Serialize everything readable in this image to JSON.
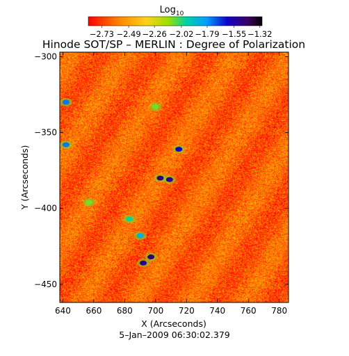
{
  "chart_data": {
    "type": "heatmap",
    "title": "Hinode SOT/SP – MERLIN : Degree of Polarization",
    "xlabel": "X (Arcseconds)",
    "ylabel": "Y (Arcseconds)",
    "footer": "5–Jan–2009 06:30:02.379",
    "xlim": [
      638,
      786
    ],
    "ylim": [
      -462,
      -297
    ],
    "x_ticks": [
      640,
      660,
      680,
      700,
      720,
      740,
      760,
      780
    ],
    "y_ticks": [
      -300,
      -350,
      -400,
      -450
    ],
    "colorbar": {
      "title": "Log",
      "title_sub": "10",
      "range": [
        -2.85,
        -1.3
      ],
      "ticks": [
        -2.73,
        -2.49,
        -2.26,
        -2.02,
        -1.79,
        -1.55,
        -1.32
      ],
      "tick_labels": [
        "−2.73",
        "−2.49",
        "−2.26",
        "−2.02",
        "−1.79",
        "−1.55",
        "−1.32"
      ]
    },
    "background_level": -2.65,
    "features": [
      {
        "x": 703,
        "y": -380,
        "level": -1.45
      },
      {
        "x": 709,
        "y": -381,
        "level": -1.5
      },
      {
        "x": 697,
        "y": -432,
        "level": -1.45
      },
      {
        "x": 692,
        "y": -436,
        "level": -1.5
      },
      {
        "x": 715,
        "y": -361,
        "level": -1.6
      },
      {
        "x": 642,
        "y": -330,
        "level": -1.75
      },
      {
        "x": 642,
        "y": -358,
        "level": -1.75
      },
      {
        "x": 690,
        "y": -418,
        "level": -1.85
      },
      {
        "x": 683,
        "y": -407,
        "level": -2.0
      },
      {
        "x": 657,
        "y": -396,
        "level": -2.1
      },
      {
        "x": 700,
        "y": -333,
        "level": -2.1
      }
    ]
  }
}
